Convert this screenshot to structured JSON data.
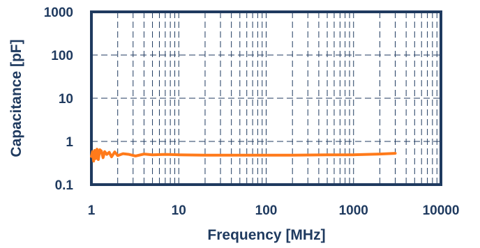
{
  "chart_data": {
    "type": "line",
    "xlabel": "Frequency [MHz]",
    "ylabel": "Capacitance [pF]",
    "x_scale": "log",
    "y_scale": "log",
    "xlim": [
      1,
      10000
    ],
    "ylim": [
      0.1,
      1000
    ],
    "x_ticks": [
      "1",
      "10",
      "100",
      "1000",
      "10000"
    ],
    "y_ticks": [
      "0.1",
      "1",
      "10",
      "100",
      "1000"
    ],
    "grid": true,
    "series": [
      {
        "color": "#ff7a1a",
        "x": [
          1.0,
          1.03,
          1.06,
          1.09,
          1.12,
          1.16,
          1.2,
          1.25,
          1.3,
          1.36,
          1.42,
          1.5,
          1.6,
          1.7,
          1.85,
          2.0,
          2.3,
          2.7,
          3.2,
          4.0,
          5.0,
          7.0,
          10,
          20,
          50,
          100,
          200,
          500,
          1000,
          2000,
          3000
        ],
        "y": [
          0.45,
          0.58,
          0.35,
          0.62,
          0.4,
          0.66,
          0.38,
          0.64,
          0.6,
          0.42,
          0.58,
          0.5,
          0.56,
          0.44,
          0.57,
          0.47,
          0.52,
          0.5,
          0.46,
          0.51,
          0.49,
          0.5,
          0.49,
          0.48,
          0.48,
          0.48,
          0.48,
          0.49,
          0.49,
          0.51,
          0.53
        ]
      }
    ]
  }
}
